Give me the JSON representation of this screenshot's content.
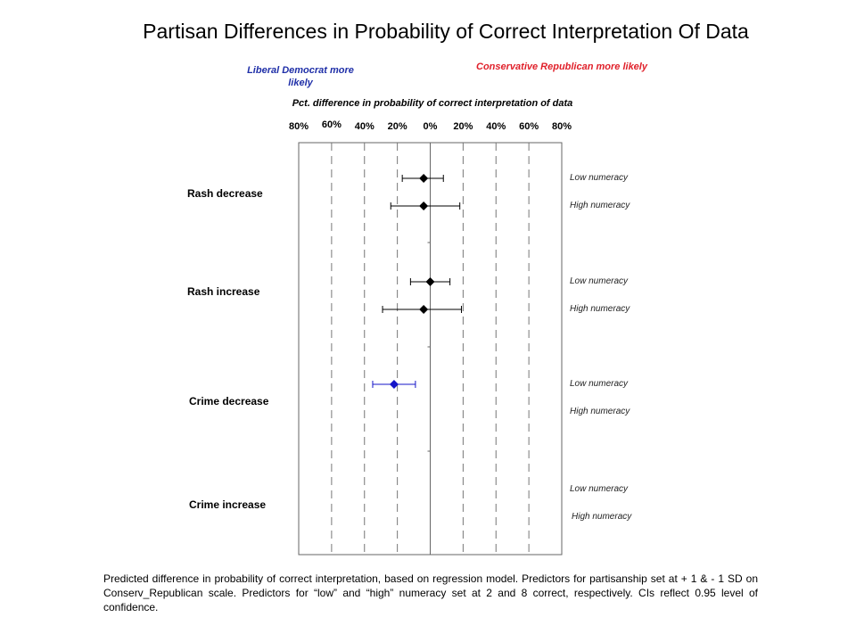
{
  "chart_data": {
    "type": "scatter",
    "title": "Partisan Differences in Probability of Correct Interpretation Of Data",
    "xlabel": "Pct. difference in probability  of correct interpretation of data",
    "annotations": {
      "left": "Liberal Democrat more likely",
      "right": "Conservative Republican more likely"
    },
    "xlim": [
      -80,
      80
    ],
    "xticks": [
      -80,
      -60,
      -40,
      -20,
      0,
      20,
      40,
      60,
      80
    ],
    "xtick_labels": [
      "80%",
      "60%",
      "40%",
      "20%",
      "0%",
      "20%",
      "40%",
      "60%",
      "80%"
    ],
    "categories": [
      "Rash decrease",
      "Rash increase",
      "Crime decrease",
      "Crime increase"
    ],
    "series_labels": [
      "Low numeracy",
      "High numeracy"
    ],
    "points": [
      {
        "category": "Rash decrease",
        "numeracy": "Low numeracy",
        "x": -4,
        "lo": -17,
        "hi": 8,
        "color": "#000000"
      },
      {
        "category": "Rash decrease",
        "numeracy": "High numeracy",
        "x": -4,
        "lo": -24,
        "hi": 18,
        "color": "#000000"
      },
      {
        "category": "Rash increase",
        "numeracy": "Low numeracy",
        "x": 0,
        "lo": -12,
        "hi": 12,
        "color": "#000000"
      },
      {
        "category": "Rash increase",
        "numeracy": "High numeracy",
        "x": -4,
        "lo": -29,
        "hi": 19,
        "color": "#000000"
      },
      {
        "category": "Crime decrease",
        "numeracy": "Low numeracy",
        "x": -22,
        "lo": -35,
        "hi": -9,
        "color": "#1515c8"
      }
    ],
    "grid": true
  },
  "footnote": "Predicted difference in probability of correct interpretation, based on regression model. Predictors for partisanship set at + 1 & - 1 SD on Conserv_Republican scale. Predictors for “low” and “high” numeracy set at 2 and 8 correct, respectively. CIs reflect 0.95 level of confidence."
}
